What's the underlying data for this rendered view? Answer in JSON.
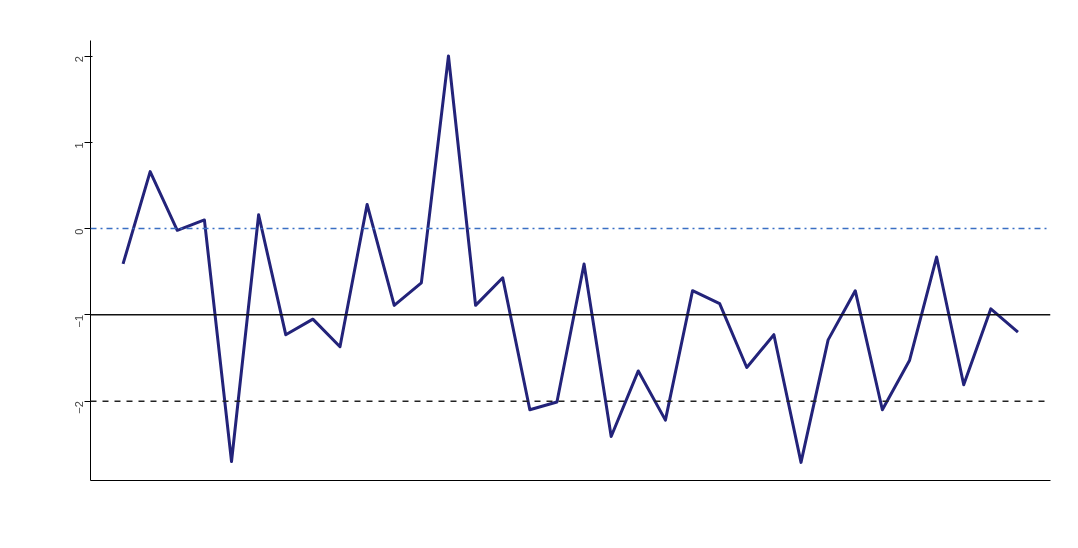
{
  "chart_data": {
    "type": "line",
    "tick_labels": "y",
    "ylim": [
      -2.92,
      2.18
    ],
    "yticks": [
      -2,
      -1,
      0,
      1,
      2
    ],
    "categories": [
      null,
      null,
      null,
      null,
      null,
      null,
      null,
      null,
      null,
      null,
      null,
      null,
      null,
      null,
      null,
      null,
      null,
      null,
      null,
      null,
      null,
      null,
      null,
      null,
      null,
      null,
      null,
      null,
      null,
      null,
      null,
      null,
      null,
      null
    ],
    "series": [
      {
        "color": "#23237a",
        "line_style": "solid",
        "values": [
          -0.41,
          0.66,
          -0.02,
          0.1,
          -2.7,
          0.16,
          -1.23,
          -1.05,
          -1.37,
          0.28,
          -0.89,
          -0.63,
          2.0,
          -0.89,
          -0.57,
          -2.1,
          -2.01,
          -0.41,
          -2.41,
          -1.65,
          -2.22,
          -0.72,
          -0.87,
          -1.61,
          -1.23,
          -2.71,
          -1.29,
          -0.72,
          -2.1,
          -1.53,
          -0.33,
          -1.81,
          -0.93,
          -1.2
        ]
      }
    ],
    "ref_lines": [
      {
        "axis": "y",
        "value": 0,
        "color": "#3a6fc4",
        "line_style": "dashdot"
      },
      {
        "axis": "y",
        "value": -1,
        "color": "#111111",
        "line_style": "solid"
      },
      {
        "axis": "y",
        "value": -2,
        "color": "#222222",
        "line_style": "dashed"
      }
    ]
  }
}
